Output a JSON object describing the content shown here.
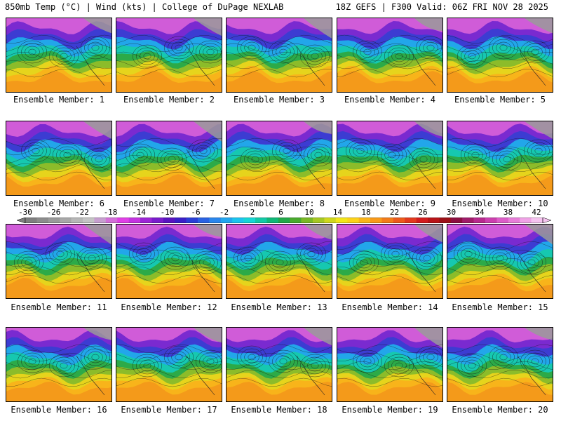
{
  "header": {
    "left_title": "850mb Temp (°C) | Wind (kts) | College of DuPage NEXLAB",
    "right_title": "18Z GEFS | F300 Valid: 06Z FRI NOV 28 2025"
  },
  "members": [
    {
      "label": "Ensemble Member: 1"
    },
    {
      "label": "Ensemble Member: 2"
    },
    {
      "label": "Ensemble Member: 3"
    },
    {
      "label": "Ensemble Member: 4"
    },
    {
      "label": "Ensemble Member: 5"
    },
    {
      "label": "Ensemble Member: 6"
    },
    {
      "label": "Ensemble Member: 7"
    },
    {
      "label": "Ensemble Member: 8"
    },
    {
      "label": "Ensemble Member: 9"
    },
    {
      "label": "Ensemble Member: 10"
    },
    {
      "label": "Ensemble Member: 11"
    },
    {
      "label": "Ensemble Member: 12"
    },
    {
      "label": "Ensemble Member: 13"
    },
    {
      "label": "Ensemble Member: 14"
    },
    {
      "label": "Ensemble Member: 15"
    },
    {
      "label": "Ensemble Member: 16"
    },
    {
      "label": "Ensemble Member: 17"
    },
    {
      "label": "Ensemble Member: 18"
    },
    {
      "label": "Ensemble Member: 19"
    },
    {
      "label": "Ensemble Member: 20"
    }
  ],
  "colorbar": {
    "tick_labels": [
      "-30",
      "-26",
      "-22",
      "-18",
      "-14",
      "-10",
      "-6",
      "-2",
      "2",
      "6",
      "10",
      "14",
      "18",
      "22",
      "26",
      "30",
      "34",
      "38",
      "42"
    ],
    "colors": [
      "#7f7f7f",
      "#8c8c8c",
      "#9a9a9a",
      "#a8a8a8",
      "#b7b7b7",
      "#c4c4c4",
      "#c79fcf",
      "#d36fd8",
      "#e040e6",
      "#c434e0",
      "#9c25d6",
      "#7a1ccc",
      "#5a14c0",
      "#3a20c8",
      "#2a3fd6",
      "#2a62e2",
      "#2a86ec",
      "#22a6ef",
      "#1cc4ee",
      "#16d6d6",
      "#12c9a6",
      "#10b878",
      "#22a84a",
      "#4aaa2e",
      "#7ab826",
      "#a6c824",
      "#cfd81e",
      "#f2e61a",
      "#fcd21a",
      "#fab41a",
      "#f89a1a",
      "#f27c1a",
      "#ec5a1c",
      "#e23a1e",
      "#d21c1e",
      "#b81418",
      "#9c1018",
      "#8c0e40",
      "#a01c6a",
      "#b82a8e",
      "#cc40ae",
      "#dc5ec8",
      "#e87ed8",
      "#f0a2e6",
      "#f6c4f0"
    ]
  }
}
